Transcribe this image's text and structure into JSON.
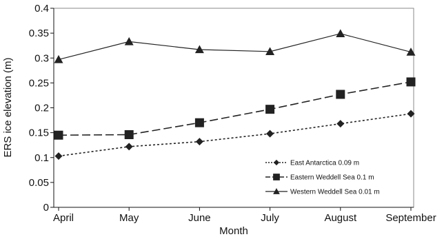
{
  "chart_data": {
    "type": "line",
    "xlabel": "Month",
    "ylabel": "ERS ice elevation (m)",
    "categories": [
      "April",
      "May",
      "June",
      "July",
      "August",
      "September"
    ],
    "ylim": [
      0,
      0.4
    ],
    "yticks": [
      "0",
      "0.05",
      "0.1",
      "0.15",
      "0.2",
      "0.25",
      "0.3",
      "0.35",
      "0.4"
    ],
    "grid": false,
    "legend_position": "lower-right",
    "series": [
      {
        "name": "East Antarctica 0.09 m",
        "values": [
          0.103,
          0.122,
          0.132,
          0.148,
          0.168,
          0.188
        ],
        "marker": "diamond",
        "line": "dotted",
        "color": "#222222"
      },
      {
        "name": "Eastern Weddell Sea 0.1 m",
        "values": [
          0.145,
          0.146,
          0.17,
          0.197,
          0.227,
          0.252
        ],
        "marker": "square",
        "line": "dashed",
        "color": "#222222"
      },
      {
        "name": "Western Weddell Sea 0.01 m",
        "values": [
          0.297,
          0.333,
          0.317,
          0.313,
          0.349,
          0.312
        ],
        "marker": "triangle",
        "line": "solid",
        "color": "#222222"
      }
    ]
  }
}
